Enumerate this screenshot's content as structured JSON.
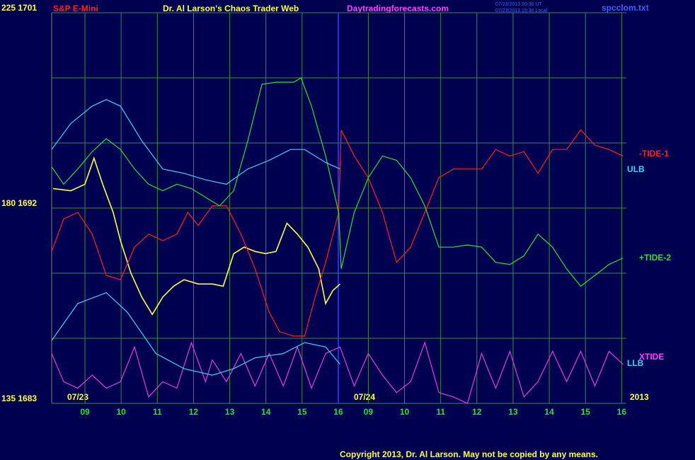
{
  "chart_data": {
    "type": "line",
    "title": "S&P E-Mini",
    "site_title": "Dr. Al Larson's Chaos Trader Web",
    "site_url": "Daytradingforecasts.com",
    "timestamp_ut": "07/23/2013 20:30 UT",
    "timestamp_local": "07/23/2013 15:30 Local",
    "file_name": "spcclom.txt",
    "date_labels": [
      "07/23",
      "07/24",
      "2013"
    ],
    "copyright": "Copyright 2013, Dr. Al Larson. May not be copied by any means.",
    "xlim": [
      -0.92,
      14.96
    ],
    "xticks": [
      {
        "value": 0,
        "label": "09"
      },
      {
        "value": 1,
        "label": "10"
      },
      {
        "value": 2,
        "label": "11"
      },
      {
        "value": 3,
        "label": "12"
      },
      {
        "value": 4,
        "label": "13"
      },
      {
        "value": 5,
        "label": "14"
      },
      {
        "value": 6,
        "label": "15"
      },
      {
        "value": 7,
        "label": "16"
      },
      {
        "value": 7.83,
        "label": "09"
      },
      {
        "value": 8.83,
        "label": "10"
      },
      {
        "value": 9.83,
        "label": "11"
      },
      {
        "value": 10.83,
        "label": "12"
      },
      {
        "value": 11.83,
        "label": "13"
      },
      {
        "value": 12.83,
        "label": "14"
      },
      {
        "value": 13.83,
        "label": "15"
      },
      {
        "value": 14.83,
        "label": "16"
      }
    ],
    "day_divider": 7,
    "ylim": [
      1683,
      1701
    ],
    "yticks": [
      {
        "value": 1683,
        "label": "135 1683"
      },
      {
        "value": 1692,
        "label": "180 1692"
      },
      {
        "value": 1701,
        "label": "225 1701"
      }
    ],
    "ygrid": [
      1683,
      1686,
      1689,
      1692,
      1695,
      1698,
      1701
    ],
    "grid": true,
    "series": [
      {
        "color": "#ffff40",
        "x": [
          -0.88,
          -0.39,
          0,
          0.25,
          0.49,
          0.78,
          0.98,
          1.27,
          1.57,
          1.86,
          2.15,
          2.45,
          2.74,
          3.13,
          3.52,
          3.82,
          4.11,
          4.4,
          4.7,
          4.99,
          5.28,
          5.58,
          5.87,
          6.16,
          6.46,
          6.65,
          6.85,
          7.05
        ],
        "values": [
          1692.9,
          1692.8,
          1693.1,
          1694.3,
          1693.1,
          1691.8,
          1690.5,
          1689.0,
          1687.9,
          1687.1,
          1687.9,
          1688.4,
          1688.7,
          1688.5,
          1688.5,
          1688.4,
          1689.9,
          1690.2,
          1690.0,
          1689.9,
          1690.0,
          1691.3,
          1690.8,
          1690.2,
          1689.2,
          1687.6,
          1688.2,
          1688.5
        ]
      },
      {
        "name": "-TIDE-1",
        "color": "#ff2020",
        "x": [
          -0.92,
          -0.59,
          -0.2,
          0.2,
          0.59,
          0.98,
          1.37,
          1.76,
          2.15,
          2.54,
          2.84,
          3.13,
          3.52,
          3.91,
          4.31,
          4.7,
          5.09,
          5.38,
          5.77,
          6.07,
          6.36,
          6.65,
          7.01,
          7.08,
          7.44,
          7.83,
          8.22,
          8.61,
          9.0,
          9.39,
          9.78,
          10.18,
          10.57,
          10.96,
          11.35,
          11.74,
          12.13,
          12.52,
          12.92,
          13.31,
          13.7,
          14.09,
          14.48,
          14.87
        ],
        "values": [
          1690.0,
          1691.5,
          1691.8,
          1690.8,
          1688.9,
          1688.7,
          1690.2,
          1690.8,
          1690.5,
          1690.8,
          1691.8,
          1691.2,
          1692.1,
          1692.1,
          1690.8,
          1689.2,
          1687.2,
          1686.3,
          1686.1,
          1686.1,
          1687.9,
          1689.5,
          1691.8,
          1695.6,
          1694.4,
          1693.4,
          1691.8,
          1689.5,
          1690.2,
          1691.8,
          1693.4,
          1693.8,
          1693.8,
          1693.8,
          1694.7,
          1694.4,
          1694.6,
          1693.6,
          1694.7,
          1694.7,
          1695.6,
          1694.9,
          1694.7,
          1694.4
        ]
      },
      {
        "name": "+TIDE-2",
        "color": "#30e030",
        "x": [
          -0.92,
          -0.59,
          -0.2,
          0.2,
          0.59,
          0.98,
          1.37,
          1.76,
          2.15,
          2.54,
          2.94,
          3.33,
          3.72,
          4.11,
          4.5,
          4.89,
          5.28,
          5.77,
          5.97,
          6.26,
          6.65,
          7.01,
          7.08,
          7.44,
          7.83,
          8.22,
          8.61,
          9.0,
          9.39,
          9.78,
          10.18,
          10.57,
          10.96,
          11.35,
          11.74,
          12.13,
          12.52,
          12.92,
          13.31,
          13.7,
          14.09,
          14.48,
          14.87
        ],
        "values": [
          1693.9,
          1693.1,
          1693.8,
          1694.6,
          1695.2,
          1694.7,
          1693.8,
          1693.1,
          1692.8,
          1693.1,
          1692.9,
          1692.5,
          1692.1,
          1692.8,
          1695.1,
          1697.7,
          1697.8,
          1697.8,
          1698.0,
          1696.7,
          1694.4,
          1691.8,
          1689.2,
          1691.8,
          1693.4,
          1694.4,
          1694.2,
          1693.4,
          1692.1,
          1690.2,
          1690.2,
          1690.3,
          1690.2,
          1689.5,
          1689.4,
          1689.8,
          1690.8,
          1690.2,
          1689.2,
          1688.4,
          1688.9,
          1689.4,
          1689.7
        ]
      },
      {
        "name": "XTIDE",
        "color": "#e040e0",
        "x": [
          -0.92,
          -0.59,
          -0.2,
          0.2,
          0.59,
          0.98,
          1.37,
          1.76,
          2.15,
          2.54,
          2.94,
          3.33,
          3.52,
          3.91,
          4.31,
          4.7,
          5.09,
          5.48,
          5.87,
          6.26,
          6.65,
          7.05,
          7.44,
          7.83,
          8.22,
          8.61,
          9.0,
          9.39,
          9.78,
          10.18,
          10.57,
          10.96,
          11.35,
          11.74,
          12.13,
          12.52,
          12.92,
          13.31,
          13.7,
          14.09,
          14.48,
          14.87
        ],
        "values": [
          1685.3,
          1684.0,
          1683.7,
          1684.3,
          1683.7,
          1684.0,
          1685.6,
          1683.3,
          1684.0,
          1683.7,
          1685.8,
          1684.0,
          1685.0,
          1684.0,
          1685.3,
          1683.8,
          1685.3,
          1683.8,
          1685.6,
          1683.7,
          1685.3,
          1685.6,
          1683.8,
          1685.3,
          1684.3,
          1683.5,
          1684.0,
          1685.8,
          1683.5,
          1683.3,
          1683.0,
          1685.3,
          1683.7,
          1685.4,
          1683.3,
          1684.0,
          1685.4,
          1684.0,
          1685.4,
          1683.8,
          1685.4,
          1684.8
        ]
      },
      {
        "name": "ULB",
        "color": "#40d0ff",
        "x": [
          -0.92,
          -0.39,
          0.2,
          0.59,
          0.98,
          1.57,
          2.15,
          2.74,
          3.33,
          3.91,
          4.5,
          5.09,
          5.68,
          6.07,
          6.65,
          7.05
        ],
        "values": [
          1694.7,
          1695.9,
          1696.7,
          1697.0,
          1696.7,
          1695.1,
          1693.8,
          1693.6,
          1693.3,
          1693.1,
          1693.8,
          1694.2,
          1694.7,
          1694.7,
          1694.1,
          1693.8
        ]
      },
      {
        "name": "LLB",
        "color": "#40d0ff",
        "x": [
          -0.92,
          -0.2,
          0.59,
          1.17,
          1.96,
          2.74,
          3.52,
          4.11,
          4.7,
          5.48,
          6.07,
          6.65,
          7.05
        ],
        "values": [
          1685.9,
          1687.6,
          1688.1,
          1687.2,
          1685.3,
          1684.6,
          1684.3,
          1684.6,
          1685.1,
          1685.3,
          1685.8,
          1685.6,
          1684.8
        ]
      }
    ]
  }
}
